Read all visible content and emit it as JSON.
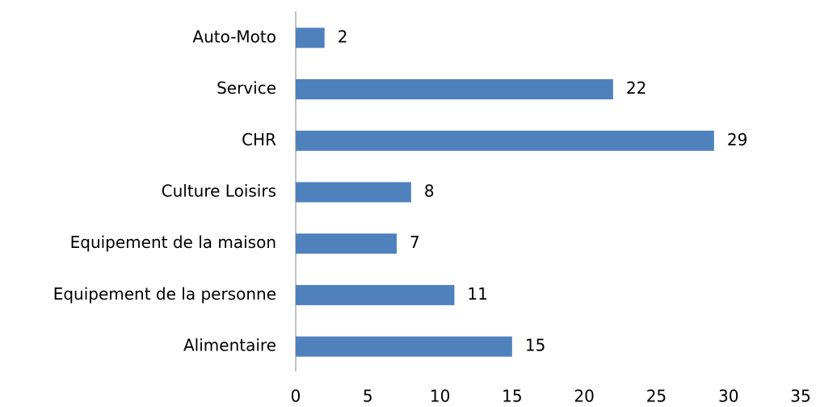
{
  "chart_data": {
    "type": "hbar",
    "categories": [
      "Auto-Moto",
      "Service",
      "CHR",
      "Culture Loisirs",
      "Equipement de la maison",
      "Equipement de la personne",
      "Alimentaire"
    ],
    "values": [
      2,
      22,
      29,
      8,
      7,
      11,
      15
    ],
    "color": "#4f81bd",
    "xlim": [
      0,
      35
    ],
    "xticks": [
      0,
      5,
      10,
      15,
      20,
      25,
      30,
      35
    ],
    "grid": false,
    "data_labels": true
  }
}
